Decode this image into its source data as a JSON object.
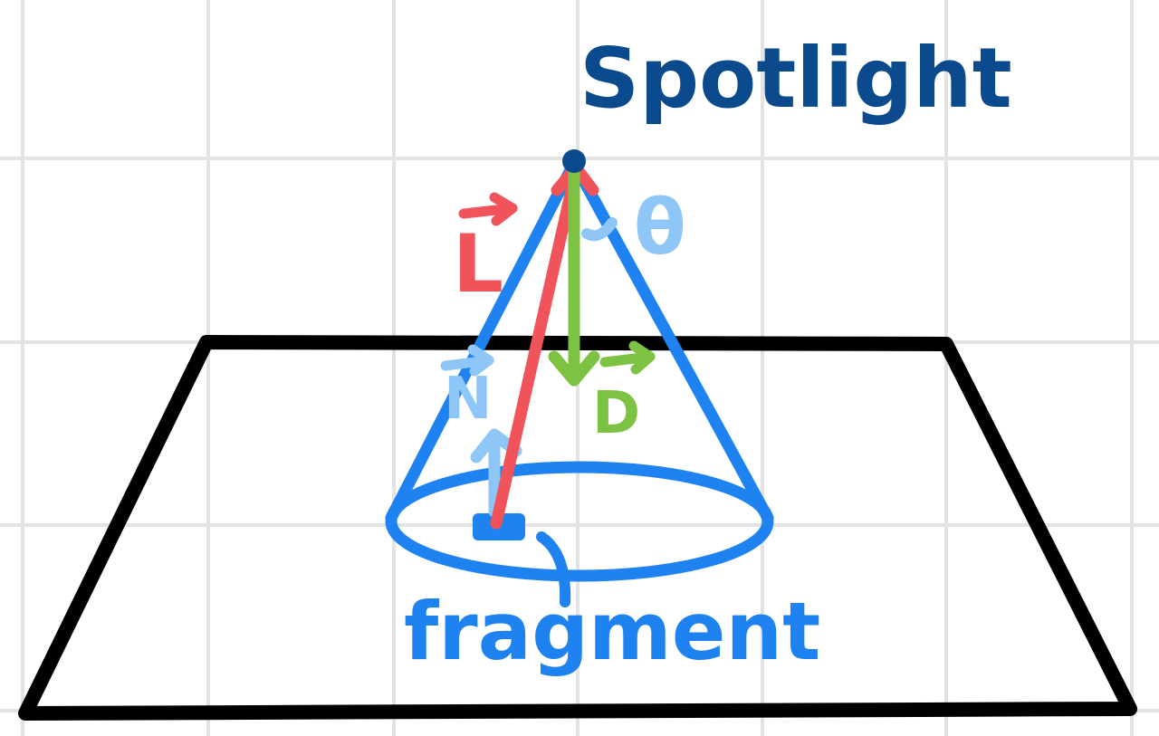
{
  "labels": {
    "title": "Spotlight",
    "fragment": "fragment",
    "light_vector": "L",
    "normal_vector": "N",
    "direction_vector": "D",
    "angle": "θ"
  },
  "colors": {
    "background": "#ffffff",
    "grid": "#e3e3e3",
    "plane": "#000000",
    "cone": "#1e82f0",
    "title": "#0b4a8c",
    "light_vector": "#f0545a",
    "direction_vector": "#7dc242",
    "normal_vector": "#8ec6f7",
    "angle": "#8ec6f7",
    "fragment": "#1e82f0"
  },
  "icons": {
    "arrow": "vector-arrow-icon"
  }
}
